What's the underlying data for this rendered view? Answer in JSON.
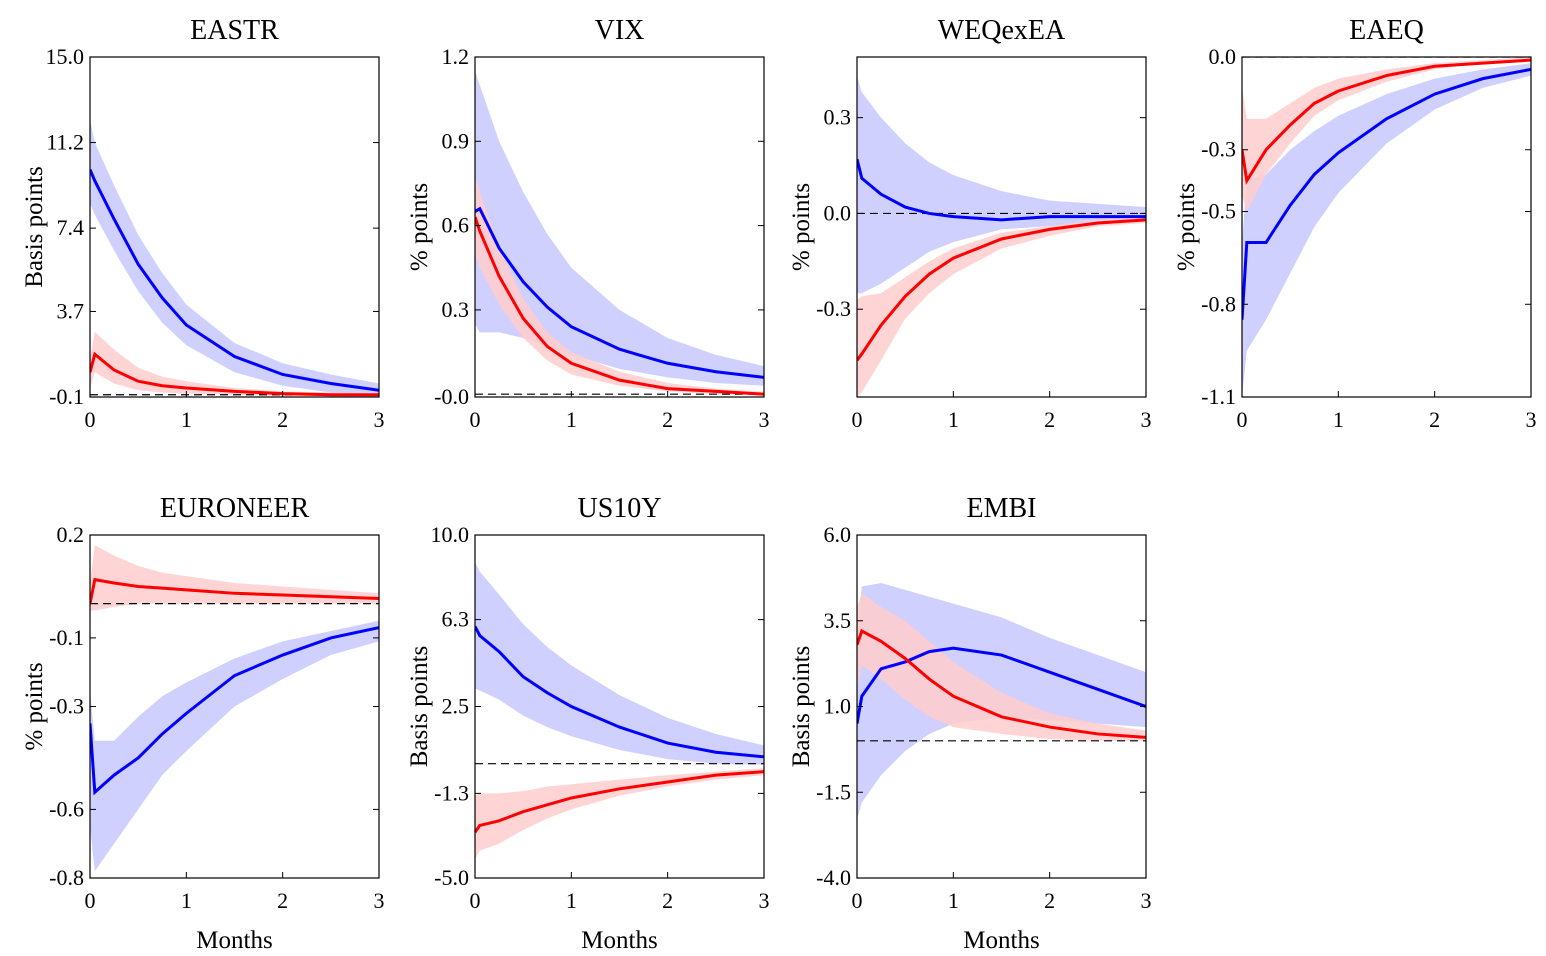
{
  "chart_data": [
    {
      "type": "line",
      "title": "EASTR",
      "ylabel": "Basis points",
      "x": [
        0,
        0.05,
        0.25,
        0.5,
        0.75,
        1,
        1.5,
        2,
        2.5,
        3
      ],
      "xlim": [
        0,
        3
      ],
      "xticks": [
        0,
        1,
        2,
        3
      ],
      "ylim": [
        -0.1,
        15
      ],
      "yticks": [
        -0.1,
        3.7,
        7.4,
        11.2,
        {
          "value": 15,
          "label": "15.0"
        }
      ],
      "series": [
        {
          "color": "#0000ff",
          "band_color": "#c8c8ff",
          "values": [
            10.0,
            9.5,
            7.8,
            5.8,
            4.3,
            3.1,
            1.7,
            0.9,
            0.5,
            0.2
          ],
          "lower": [
            8.5,
            8.0,
            6.4,
            4.6,
            3.2,
            2.2,
            1.0,
            0.4,
            0.1,
            -0.05
          ],
          "upper": [
            12.2,
            11.2,
            9.3,
            7.1,
            5.4,
            4.0,
            2.3,
            1.4,
            0.9,
            0.5
          ]
        },
        {
          "color": "#ff0000",
          "band_color": "#ffcccc",
          "values": [
            1.0,
            1.8,
            1.1,
            0.6,
            0.4,
            0.3,
            0.15,
            0.05,
            0.0,
            0.0
          ],
          "lower": [
            0.3,
            1.0,
            0.5,
            0.2,
            0.1,
            0.05,
            0,
            -0.05,
            -0.05,
            -0.05
          ],
          "upper": [
            1.6,
            2.8,
            2.0,
            1.2,
            0.8,
            0.6,
            0.3,
            0.15,
            0.1,
            0.05
          ]
        }
      ]
    },
    {
      "type": "line",
      "title": "VIX",
      "ylabel": "% points",
      "x": [
        0,
        0.05,
        0.25,
        0.5,
        0.75,
        1,
        1.5,
        2,
        2.5,
        3
      ],
      "xlim": [
        0,
        3
      ],
      "xticks": [
        0,
        1,
        2,
        3
      ],
      "ylim": [
        -0.01,
        1.2
      ],
      "yticks": [
        {
          "value": -0.01,
          "label": "-0.0"
        },
        0.3,
        0.6,
        0.9,
        1.2
      ],
      "series": [
        {
          "color": "#0000ff",
          "band_color": "#c8c8ff",
          "values": [
            0.65,
            0.66,
            0.52,
            0.4,
            0.31,
            0.24,
            0.16,
            0.11,
            0.08,
            0.06
          ],
          "lower": [
            0.25,
            0.22,
            0.22,
            0.2,
            0.17,
            0.14,
            0.09,
            0.06,
            0.04,
            0.03
          ],
          "upper": [
            1.15,
            1.1,
            0.9,
            0.72,
            0.57,
            0.45,
            0.3,
            0.2,
            0.14,
            0.1
          ]
        },
        {
          "color": "#ff0000",
          "band_color": "#ffcccc",
          "values": [
            0.63,
            0.58,
            0.42,
            0.27,
            0.17,
            0.11,
            0.05,
            0.02,
            0.01,
            0.0
          ],
          "lower": [
            0.5,
            0.45,
            0.32,
            0.2,
            0.12,
            0.07,
            0.03,
            0.01,
            0,
            0
          ],
          "upper": [
            0.78,
            0.72,
            0.52,
            0.34,
            0.22,
            0.15,
            0.08,
            0.04,
            0.02,
            0.01
          ]
        }
      ]
    },
    {
      "type": "line",
      "title": "WEQexEA",
      "ylabel": "% points",
      "x": [
        0,
        0.05,
        0.25,
        0.5,
        0.75,
        1,
        1.5,
        2,
        2.5,
        3
      ],
      "xlim": [
        0,
        3
      ],
      "xticks": [
        0,
        1,
        2,
        3
      ],
      "ylim": [
        -0.575,
        0.49
      ],
      "yticks": [
        -0.3,
        {
          "value": 0,
          "label": "0.0"
        },
        0.3
      ],
      "series": [
        {
          "color": "#0000ff",
          "band_color": "#c8c8ff",
          "values": [
            0.17,
            0.11,
            0.06,
            0.02,
            0.0,
            -0.01,
            -0.02,
            -0.01,
            -0.01,
            -0.01
          ],
          "lower": [
            -0.25,
            -0.25,
            -0.22,
            -0.17,
            -0.12,
            -0.09,
            -0.05,
            -0.04,
            -0.03,
            -0.02
          ],
          "upper": [
            0.43,
            0.38,
            0.3,
            0.22,
            0.16,
            0.12,
            0.07,
            0.04,
            0.03,
            0.02
          ]
        },
        {
          "color": "#ff0000",
          "band_color": "#ffcccc",
          "values": [
            -0.46,
            -0.44,
            -0.35,
            -0.26,
            -0.19,
            -0.14,
            -0.08,
            -0.05,
            -0.03,
            -0.02
          ],
          "lower": [
            -0.575,
            -0.56,
            -0.46,
            -0.33,
            -0.25,
            -0.19,
            -0.11,
            -0.07,
            -0.04,
            -0.03
          ],
          "upper": [
            -0.27,
            -0.26,
            -0.25,
            -0.2,
            -0.15,
            -0.11,
            -0.06,
            -0.04,
            -0.02,
            -0.01
          ]
        }
      ]
    },
    {
      "type": "line",
      "title": "EAEQ",
      "ylabel": "% points",
      "x": [
        0,
        0.05,
        0.25,
        0.5,
        0.75,
        1,
        1.5,
        2,
        2.5,
        3
      ],
      "xlim": [
        0,
        3
      ],
      "xticks": [
        0,
        1,
        2,
        3
      ],
      "ylim": [
        -1.1,
        0
      ],
      "yticks": [
        -1.1,
        -0.8,
        -0.5,
        -0.3,
        {
          "value": 0,
          "label": "0.0"
        }
      ],
      "series": [
        {
          "color": "#0000ff",
          "band_color": "#c8c8ff",
          "values": [
            -0.85,
            -0.6,
            -0.6,
            -0.48,
            -0.38,
            -0.31,
            -0.2,
            -0.12,
            -0.07,
            -0.04
          ],
          "lower": [
            -1.1,
            -0.95,
            -0.85,
            -0.7,
            -0.55,
            -0.44,
            -0.28,
            -0.17,
            -0.1,
            -0.06
          ],
          "upper": [
            -0.6,
            -0.4,
            -0.38,
            -0.3,
            -0.24,
            -0.19,
            -0.12,
            -0.07,
            -0.04,
            -0.02
          ]
        },
        {
          "color": "#ff0000",
          "band_color": "#ffcccc",
          "values": [
            -0.3,
            -0.4,
            -0.3,
            -0.22,
            -0.15,
            -0.11,
            -0.06,
            -0.03,
            -0.02,
            -0.01
          ],
          "lower": [
            -0.45,
            -0.5,
            -0.38,
            -0.28,
            -0.19,
            -0.14,
            -0.08,
            -0.04,
            -0.02,
            -0.01
          ],
          "upper": [
            -0.1,
            -0.2,
            -0.2,
            -0.15,
            -0.1,
            -0.07,
            -0.04,
            -0.02,
            -0.01,
            0
          ]
        }
      ]
    },
    {
      "type": "line",
      "title": "EURONEER",
      "ylabel": "% points",
      "xlabel": "Months",
      "x": [
        0,
        0.05,
        0.25,
        0.5,
        0.75,
        1,
        1.5,
        2,
        2.5,
        3
      ],
      "xlim": [
        0,
        3
      ],
      "xticks": [
        0,
        1,
        2,
        3
      ],
      "ylim": [
        -0.8,
        0.2
      ],
      "yticks": [
        -0.8,
        -0.6,
        -0.3,
        -0.1,
        0.2
      ],
      "series": [
        {
          "color": "#0000ff",
          "band_color": "#c8c8ff",
          "values": [
            -0.35,
            -0.55,
            -0.5,
            -0.45,
            -0.38,
            -0.32,
            -0.21,
            -0.15,
            -0.1,
            -0.07
          ],
          "lower": [
            -0.65,
            -0.78,
            -0.7,
            -0.6,
            -0.5,
            -0.43,
            -0.3,
            -0.22,
            -0.15,
            -0.11
          ],
          "upper": [
            -0.25,
            -0.4,
            -0.4,
            -0.33,
            -0.27,
            -0.23,
            -0.16,
            -0.11,
            -0.08,
            -0.05
          ]
        },
        {
          "color": "#ff0000",
          "band_color": "#ffcccc",
          "values": [
            0.0,
            0.07,
            0.06,
            0.05,
            0.045,
            0.04,
            0.03,
            0.025,
            0.02,
            0.015
          ],
          "lower": [
            -0.02,
            -0.02,
            -0.01,
            0,
            0,
            0,
            0,
            0,
            0,
            0
          ],
          "upper": [
            0.06,
            0.17,
            0.14,
            0.11,
            0.09,
            0.08,
            0.06,
            0.05,
            0.04,
            0.03
          ]
        }
      ]
    },
    {
      "type": "line",
      "title": "US10Y",
      "ylabel": "Basis points",
      "xlabel": "Months",
      "x": [
        0,
        0.05,
        0.25,
        0.5,
        0.75,
        1,
        1.5,
        2,
        2.5,
        3
      ],
      "xlim": [
        0,
        3
      ],
      "xticks": [
        0,
        1,
        2,
        3
      ],
      "ylim": [
        -5,
        10
      ],
      "yticks": [
        {
          "value": -5,
          "label": "-5.0"
        },
        -1.3,
        2.5,
        6.3,
        {
          "value": 10,
          "label": "10.0"
        }
      ],
      "series": [
        {
          "color": "#0000ff",
          "band_color": "#c8c8ff",
          "values": [
            6.0,
            5.6,
            4.9,
            3.8,
            3.1,
            2.5,
            1.6,
            0.9,
            0.5,
            0.3
          ],
          "lower": [
            3.3,
            3.2,
            2.8,
            2.1,
            1.6,
            1.2,
            0.6,
            0.2,
            0,
            -0.05
          ],
          "upper": [
            8.8,
            8.4,
            7.4,
            6.1,
            5.1,
            4.3,
            3.0,
            2.0,
            1.3,
            0.8
          ]
        },
        {
          "color": "#ff0000",
          "band_color": "#ffcccc",
          "values": [
            -3.0,
            -2.7,
            -2.5,
            -2.1,
            -1.8,
            -1.5,
            -1.1,
            -0.8,
            -0.5,
            -0.35
          ],
          "lower": [
            -4.2,
            -3.8,
            -3.5,
            -2.9,
            -2.4,
            -2.0,
            -1.4,
            -1.0,
            -0.7,
            -0.5
          ],
          "upper": [
            -1.4,
            -1.3,
            -1.3,
            -1.2,
            -1.0,
            -0.9,
            -0.7,
            -0.5,
            -0.35,
            -0.2
          ]
        }
      ]
    },
    {
      "type": "line",
      "title": "EMBI",
      "ylabel": "Basis points",
      "xlabel": "Months",
      "x": [
        0,
        0.05,
        0.25,
        0.5,
        0.75,
        1,
        1.5,
        2,
        2.5,
        3
      ],
      "xlim": [
        0,
        3
      ],
      "xticks": [
        0,
        1,
        2,
        3
      ],
      "ylim": [
        -4,
        6
      ],
      "yticks": [
        {
          "value": -4,
          "label": "-4.0"
        },
        -1.5,
        {
          "value": 1,
          "label": "1.0"
        },
        3.5,
        {
          "value": 6,
          "label": "6.0"
        }
      ],
      "series": [
        {
          "color": "#0000ff",
          "band_color": "#c8c8ff",
          "values": [
            0.5,
            1.3,
            2.1,
            2.3,
            2.6,
            2.7,
            2.5,
            2.0,
            1.5,
            1.0
          ],
          "lower": [
            -2.3,
            -1.8,
            -1.0,
            -0.3,
            0.2,
            0.5,
            0.7,
            0.6,
            0.5,
            0.4
          ],
          "upper": [
            3.0,
            4.5,
            4.6,
            4.4,
            4.2,
            4.0,
            3.6,
            3.0,
            2.5,
            2.0
          ]
        },
        {
          "color": "#ff0000",
          "band_color": "#ffcccc",
          "values": [
            2.8,
            3.2,
            2.9,
            2.4,
            1.8,
            1.3,
            0.7,
            0.4,
            0.2,
            0.1
          ],
          "lower": [
            1.5,
            2.2,
            1.8,
            1.2,
            0.7,
            0.4,
            0.2,
            0.05,
            0,
            0
          ],
          "upper": [
            3.9,
            4.3,
            3.9,
            3.5,
            2.9,
            2.3,
            1.4,
            0.8,
            0.5,
            0.3
          ]
        }
      ]
    }
  ]
}
